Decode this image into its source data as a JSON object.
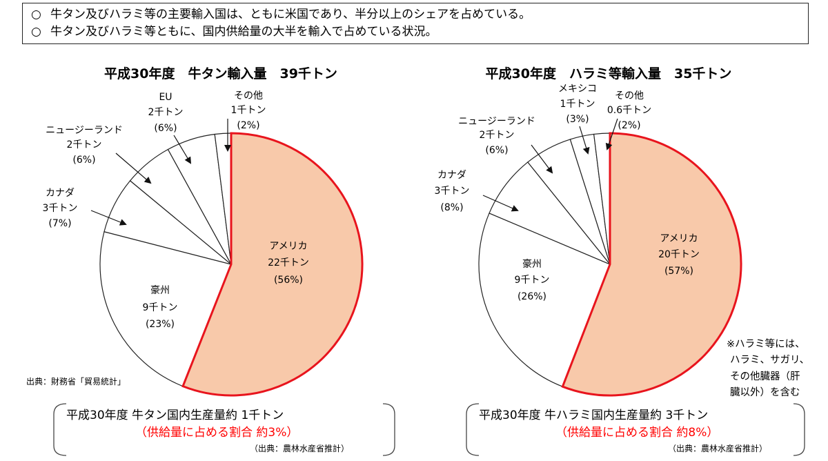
{
  "summary": [
    {
      "mark": "○",
      "text": "牛タン及びハラミ等の主要輸入国は、ともに米国であり、半分以上のシェアを占めている。"
    },
    {
      "mark": "○",
      "text": "牛タン及びハラミ等ともに、国内供給量の大半を輸入で占めている状況。"
    }
  ],
  "colors": {
    "highlight_fill": "#f8c9aa",
    "highlight_stroke": "#e8141d",
    "slice_fill": "#ffffff",
    "line": "#222222",
    "accent_text": "#ff0000"
  },
  "chart_data": [
    {
      "type": "pie",
      "title": "平成30年度　牛タン輸入量　39千トン",
      "slices": [
        {
          "name": "アメリカ",
          "amount": "22千トン",
          "pct_label": "(56%)",
          "value": 56
        },
        {
          "name": "豪州",
          "amount": "9千トン",
          "pct_label": "(23%)",
          "value": 23
        },
        {
          "name": "カナダ",
          "amount": "3千トン",
          "pct_label": "(7%)",
          "value": 7
        },
        {
          "name": "ニュージーランド",
          "amount": "2千トン",
          "pct_label": "(6%)",
          "value": 6
        },
        {
          "name": "EU",
          "amount": "2千トン",
          "pct_label": "(6%)",
          "value": 6
        },
        {
          "name": "その他",
          "amount": "1千トン",
          "pct_label": "(2%)",
          "value": 2
        }
      ],
      "source": "出典：財務省「貿易統計」",
      "production": {
        "line1": "平成30年度 牛タン国内生産量約 1千トン",
        "line2": "（供給量に占める割合 約3%）",
        "source": "（出典：農林水産省推計）"
      }
    },
    {
      "type": "pie",
      "title": "平成30年度　ハラミ等輸入量　35千トン",
      "slices": [
        {
          "name": "アメリカ",
          "amount": "20千トン",
          "pct_label": "(57%)",
          "value": 57
        },
        {
          "name": "豪州",
          "amount": "9千トン",
          "pct_label": "(26%)",
          "value": 26
        },
        {
          "name": "カナダ",
          "amount": "3千トン",
          "pct_label": "(8%)",
          "value": 8
        },
        {
          "name": "ニュージーランド",
          "amount": "2千トン",
          "pct_label": "(6%)",
          "value": 6
        },
        {
          "name": "メキシコ",
          "amount": "1千トン",
          "pct_label": "(3%)",
          "value": 3
        },
        {
          "name": "その他",
          "amount": "0.6千トン",
          "pct_label": "(2%)",
          "value": 2
        }
      ],
      "note": [
        "※ハラミ等には、",
        "ハラミ、サガリ、",
        "その他臓器（肝",
        "臓以外）を含む"
      ],
      "production": {
        "line1": "平成30年度 牛ハラミ国内生産量約 3千トン",
        "line2": "（供給量に占める割合 約8%）",
        "source": "（出典：農林水産省推計）"
      }
    }
  ]
}
